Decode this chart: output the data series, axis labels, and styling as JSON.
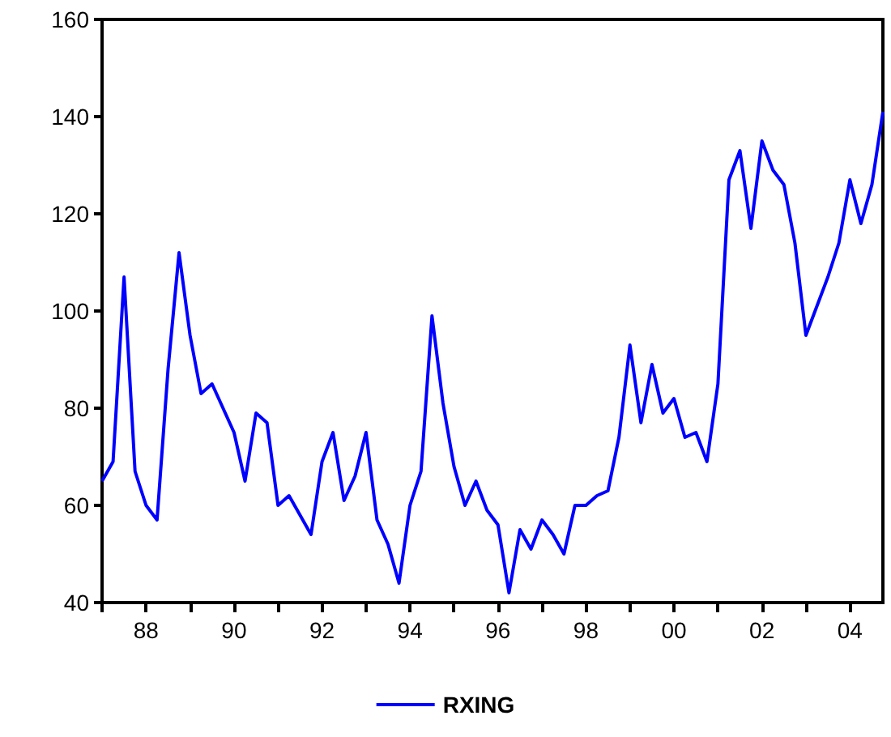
{
  "chart_data": {
    "type": "line",
    "x": [
      1987,
      1987.25,
      1987.5,
      1987.75,
      1988,
      1988.25,
      1988.5,
      1988.75,
      1989,
      1989.25,
      1989.5,
      1989.75,
      1990,
      1990.25,
      1990.5,
      1990.75,
      1991,
      1991.25,
      1991.5,
      1991.75,
      1992,
      1992.25,
      1992.5,
      1992.75,
      1993,
      1993.25,
      1993.5,
      1993.75,
      1994,
      1994.25,
      1994.5,
      1994.75,
      1995,
      1995.25,
      1995.5,
      1995.75,
      1996,
      1996.25,
      1996.5,
      1996.75,
      1997,
      1997.25,
      1997.5,
      1997.75,
      1998,
      1998.25,
      1998.5,
      1998.75,
      1999,
      1999.25,
      1999.5,
      1999.75,
      2000,
      2000.25,
      2000.5,
      2000.75,
      2001,
      2001.25,
      2001.5,
      2001.75,
      2002,
      2002.25,
      2002.5,
      2002.75,
      2003,
      2003.25,
      2003.5,
      2003.75,
      2004,
      2004.25,
      2004.5,
      2004.75
    ],
    "series": [
      {
        "name": "RXING",
        "color": "#0000ff",
        "values": [
          65,
          69,
          107,
          67,
          60,
          57,
          88,
          112,
          95,
          83,
          85,
          80,
          75,
          65,
          79,
          77,
          60,
          62,
          58,
          54,
          69,
          75,
          61,
          66,
          75,
          57,
          52,
          44,
          60,
          67,
          99,
          81,
          68,
          60,
          65,
          59,
          56,
          42,
          55,
          51,
          57,
          54,
          50,
          60,
          60,
          62,
          63,
          74,
          93,
          77,
          89,
          79,
          82,
          74,
          75,
          69,
          85,
          127,
          133,
          117,
          135,
          129,
          126,
          114,
          95,
          101,
          107,
          114,
          127,
          118,
          126,
          141
        ]
      }
    ],
    "xlim": [
      1987,
      2004.75
    ],
    "xticks": [
      {
        "value": 1987,
        "label": null
      },
      {
        "value": 1988,
        "label": "88"
      },
      {
        "value": 1989,
        "label": null
      },
      {
        "value": 1990,
        "label": "90"
      },
      {
        "value": 1991,
        "label": null
      },
      {
        "value": 1992,
        "label": "92"
      },
      {
        "value": 1993,
        "label": null
      },
      {
        "value": 1994,
        "label": "94"
      },
      {
        "value": 1995,
        "label": null
      },
      {
        "value": 1996,
        "label": "96"
      },
      {
        "value": 1997,
        "label": null
      },
      {
        "value": 1998,
        "label": "98"
      },
      {
        "value": 1999,
        "label": null
      },
      {
        "value": 2000,
        "label": "00"
      },
      {
        "value": 2001,
        "label": null
      },
      {
        "value": 2002,
        "label": "02"
      },
      {
        "value": 2003,
        "label": null
      },
      {
        "value": 2004,
        "label": "04"
      }
    ],
    "ylim": [
      40,
      160
    ],
    "yticks": [
      40,
      60,
      80,
      100,
      120,
      140,
      160
    ],
    "grid": false,
    "legend": "bottom",
    "marker": "none",
    "line_style": "solid"
  }
}
